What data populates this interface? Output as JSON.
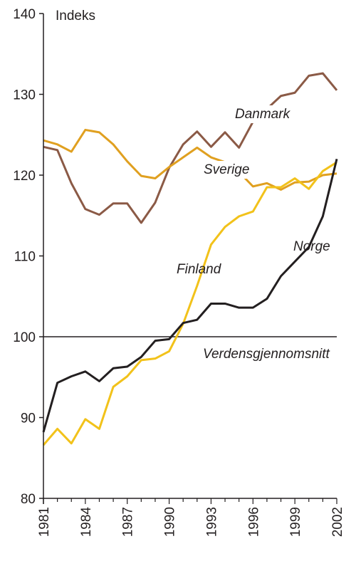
{
  "chart_data": {
    "type": "line",
    "ylabel": "Indeks",
    "ylim": [
      80,
      140
    ],
    "yticks": [
      80,
      90,
      100,
      110,
      120,
      130,
      140
    ],
    "xlim": [
      1981,
      2002
    ],
    "xticks": [
      1981,
      1984,
      1987,
      1990,
      1993,
      1996,
      1999,
      2002
    ],
    "x": [
      1981,
      1982,
      1983,
      1984,
      1985,
      1986,
      1987,
      1988,
      1989,
      1990,
      1991,
      1992,
      1993,
      1994,
      1995,
      1996,
      1997,
      1998,
      1999,
      2000,
      2001,
      2002
    ],
    "grid": false,
    "reference_line": {
      "label": "Verdensgjennomsnitt",
      "value": 100
    },
    "series": [
      {
        "name": "Danmark",
        "color": "#8b5a46",
        "values": [
          123.5,
          123.1,
          119.0,
          115.8,
          115.1,
          116.5,
          116.5,
          114.1,
          116.6,
          120.9,
          123.8,
          125.4,
          123.5,
          125.3,
          123.4,
          126.6,
          128.2,
          129.8,
          130.2,
          132.3,
          132.6,
          130.5
        ]
      },
      {
        "name": "Sverige",
        "color": "#e0a020",
        "values": [
          124.3,
          123.8,
          122.9,
          125.6,
          125.3,
          123.8,
          121.7,
          119.9,
          119.6,
          121.0,
          122.2,
          123.4,
          122.2,
          121.6,
          120.4,
          118.6,
          119.0,
          118.2,
          119.1,
          119.2,
          120.0,
          120.2
        ]
      },
      {
        "name": "Finland",
        "color": "#f2c21a",
        "values": [
          86.6,
          88.6,
          86.8,
          89.8,
          88.6,
          93.8,
          95.1,
          97.1,
          97.3,
          98.2,
          101.6,
          106.3,
          111.4,
          113.6,
          114.9,
          115.5,
          118.5,
          118.5,
          119.6,
          118.3,
          120.5,
          121.6
        ]
      },
      {
        "name": "Norge",
        "color": "#231f20",
        "values": [
          88.2,
          94.3,
          95.1,
          95.7,
          94.5,
          96.1,
          96.3,
          97.5,
          99.5,
          99.7,
          101.7,
          102.1,
          104.1,
          104.1,
          103.6,
          103.6,
          104.7,
          107.5,
          109.3,
          111.1,
          114.9,
          122.0
        ]
      }
    ]
  }
}
